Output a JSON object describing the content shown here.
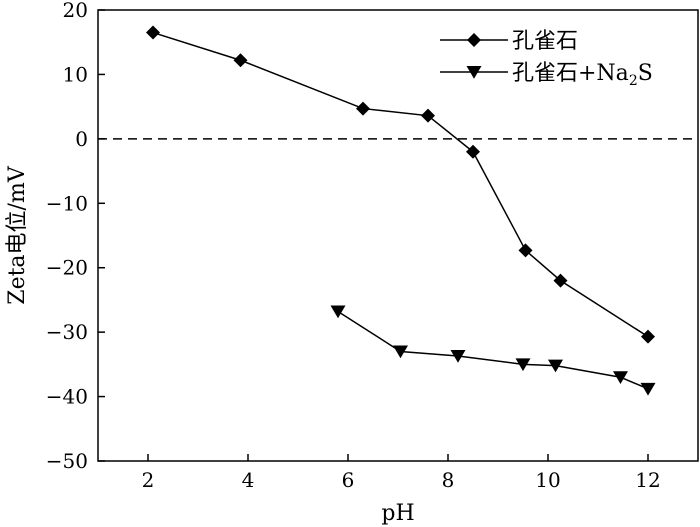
{
  "chart_data": {
    "type": "line",
    "xlabel": "pH",
    "ylabel": "Zeta电位/mV",
    "xlim": [
      1,
      13
    ],
    "ylim": [
      -50,
      20
    ],
    "xticks": [
      2,
      4,
      6,
      8,
      10,
      12
    ],
    "yticks": [
      20,
      10,
      0,
      -10,
      -20,
      -30,
      -40,
      -50
    ],
    "xtick_labels": [
      "2",
      "4",
      "6",
      "8",
      "10",
      "12"
    ],
    "ytick_labels": [
      "20",
      "10",
      "0",
      "−10",
      "−20",
      "−30",
      "−40",
      "−50"
    ],
    "reference_line": {
      "y": 0,
      "style": "dashed"
    },
    "grid": false,
    "legend_position": "top-right",
    "series": [
      {
        "name": "孔雀石",
        "marker": "diamond",
        "x": [
          2.1,
          3.85,
          6.3,
          7.6,
          8.5,
          9.55,
          10.25,
          12.0
        ],
        "y": [
          16.5,
          12.2,
          4.7,
          3.6,
          -2.0,
          -17.3,
          -22.0,
          -30.7
        ]
      },
      {
        "name": "孔雀石+Na₂S",
        "name_base": "孔雀石+Na",
        "name_sub": "2",
        "name_tail": "S",
        "marker": "triangle-down",
        "x": [
          5.8,
          7.05,
          8.2,
          9.5,
          10.15,
          11.45,
          12.0
        ],
        "y": [
          -26.8,
          -33.0,
          -33.7,
          -35.0,
          -35.2,
          -37.0,
          -38.8
        ]
      }
    ]
  }
}
